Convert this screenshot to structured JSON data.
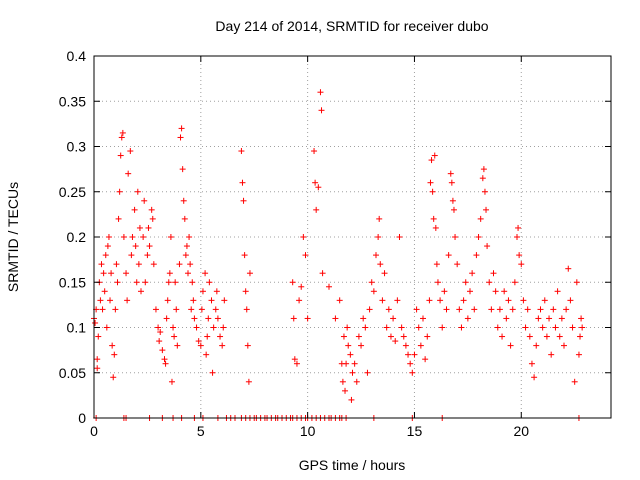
{
  "chart_data": {
    "type": "scatter",
    "title": "Day 214 of 2014, SRMTID for receiver dubo",
    "xlabel": "GPS time / hours",
    "ylabel": "SRMTID / TECUs",
    "xlim": [
      0,
      24.2
    ],
    "ylim": [
      0,
      0.4
    ],
    "x_ticks": [
      0,
      5,
      10,
      15,
      20
    ],
    "x_tick_labels": [
      "0",
      "5",
      "10",
      "15",
      "20"
    ],
    "y_ticks": [
      0,
      0.05,
      0.1,
      0.15,
      0.2,
      0.25,
      0.3,
      0.35,
      0.4
    ],
    "y_tick_labels": [
      "0",
      "0.05",
      "0.1",
      "0.15",
      "0.2",
      "0.25",
      "0.3",
      "0.35",
      "0.4"
    ],
    "grid": true,
    "marker": "+",
    "color": "#ff0000",
    "series": [
      {
        "name": "SRMTID",
        "points": [
          [
            0.0,
            0.11
          ],
          [
            0.05,
            0.105
          ],
          [
            0.1,
            0.12
          ],
          [
            0.15,
            0.055
          ],
          [
            0.15,
            0.065
          ],
          [
            0.2,
            0.09
          ],
          [
            0.25,
            0.15
          ],
          [
            0.3,
            0.13
          ],
          [
            0.35,
            0.17
          ],
          [
            0.4,
            0.12
          ],
          [
            0.45,
            0.16
          ],
          [
            0.5,
            0.14
          ],
          [
            0.55,
            0.18
          ],
          [
            0.6,
            0.1
          ],
          [
            0.65,
            0.19
          ],
          [
            0.7,
            0.2
          ],
          [
            0.75,
            0.13
          ],
          [
            0.8,
            0.16
          ],
          [
            0.85,
            0.08
          ],
          [
            0.9,
            0.045
          ],
          [
            0.95,
            0.07
          ],
          [
            1.0,
            0.12
          ],
          [
            1.05,
            0.17
          ],
          [
            1.1,
            0.15
          ],
          [
            1.15,
            0.22
          ],
          [
            1.2,
            0.25
          ],
          [
            1.25,
            0.29
          ],
          [
            1.3,
            0.31
          ],
          [
            1.35,
            0.315
          ],
          [
            1.4,
            0.2
          ],
          [
            1.5,
            0.16
          ],
          [
            1.55,
            0.13
          ],
          [
            1.6,
            0.27
          ],
          [
            1.7,
            0.295
          ],
          [
            1.75,
            0.18
          ],
          [
            1.8,
            0.2
          ],
          [
            1.9,
            0.23
          ],
          [
            1.95,
            0.19
          ],
          [
            2.0,
            0.15
          ],
          [
            2.05,
            0.25
          ],
          [
            2.1,
            0.17
          ],
          [
            2.15,
            0.21
          ],
          [
            2.2,
            0.14
          ],
          [
            2.3,
            0.2
          ],
          [
            2.35,
            0.24
          ],
          [
            2.4,
            0.15
          ],
          [
            2.5,
            0.18
          ],
          [
            2.55,
            0.21
          ],
          [
            2.6,
            0.19
          ],
          [
            2.7,
            0.23
          ],
          [
            2.75,
            0.22
          ],
          [
            2.8,
            0.17
          ],
          [
            2.9,
            0.12
          ],
          [
            3.0,
            0.1
          ],
          [
            3.05,
            0.085
          ],
          [
            3.1,
            0.095
          ],
          [
            3.2,
            0.075
          ],
          [
            3.3,
            0.065
          ],
          [
            3.35,
            0.06
          ],
          [
            3.4,
            0.11
          ],
          [
            3.45,
            0.13
          ],
          [
            3.5,
            0.15
          ],
          [
            3.55,
            0.16
          ],
          [
            3.6,
            0.2
          ],
          [
            3.65,
            0.04
          ],
          [
            3.7,
            0.1
          ],
          [
            3.75,
            0.09
          ],
          [
            3.8,
            0.15
          ],
          [
            3.85,
            0.12
          ],
          [
            3.9,
            0.08
          ],
          [
            4.0,
            0.17
          ],
          [
            4.05,
            0.31
          ],
          [
            4.1,
            0.32
          ],
          [
            4.15,
            0.275
          ],
          [
            4.2,
            0.24
          ],
          [
            4.25,
            0.22
          ],
          [
            4.3,
            0.18
          ],
          [
            4.35,
            0.19
          ],
          [
            4.4,
            0.16
          ],
          [
            4.45,
            0.2
          ],
          [
            4.5,
            0.17
          ],
          [
            4.55,
            0.12
          ],
          [
            4.6,
            0.15
          ],
          [
            4.65,
            0.13
          ],
          [
            4.7,
            0.11
          ],
          [
            4.8,
            0.1
          ],
          [
            4.9,
            0.085
          ],
          [
            5.0,
            0.08
          ],
          [
            5.05,
            0.12
          ],
          [
            5.1,
            0.14
          ],
          [
            5.2,
            0.16
          ],
          [
            5.25,
            0.07
          ],
          [
            5.3,
            0.09
          ],
          [
            5.35,
            0.11
          ],
          [
            5.4,
            0.15
          ],
          [
            5.5,
            0.13
          ],
          [
            5.55,
            0.05
          ],
          [
            5.6,
            0.1
          ],
          [
            5.7,
            0.12
          ],
          [
            5.75,
            0.14
          ],
          [
            5.8,
            0.11
          ],
          [
            5.9,
            0.09
          ],
          [
            6.0,
            0.08
          ],
          [
            6.05,
            0.1
          ],
          [
            6.1,
            0.13
          ],
          [
            6.9,
            0.295
          ],
          [
            6.95,
            0.26
          ],
          [
            7.0,
            0.24
          ],
          [
            7.05,
            0.18
          ],
          [
            7.1,
            0.14
          ],
          [
            7.15,
            0.12
          ],
          [
            7.2,
            0.08
          ],
          [
            7.25,
            0.04
          ],
          [
            7.3,
            0.16
          ],
          [
            9.3,
            0.15
          ],
          [
            9.35,
            0.11
          ],
          [
            9.4,
            0.065
          ],
          [
            9.5,
            0.06
          ],
          [
            9.6,
            0.13
          ],
          [
            9.7,
            0.145
          ],
          [
            9.8,
            0.2
          ],
          [
            9.9,
            0.18
          ],
          [
            10.0,
            0.11
          ],
          [
            10.3,
            0.295
          ],
          [
            10.35,
            0.26
          ],
          [
            10.4,
            0.23
          ],
          [
            10.5,
            0.255
          ],
          [
            10.6,
            0.36
          ],
          [
            10.65,
            0.34
          ],
          [
            10.7,
            0.16
          ],
          [
            11.0,
            0.145
          ],
          [
            11.3,
            0.11
          ],
          [
            11.5,
            0.13
          ],
          [
            11.6,
            0.06
          ],
          [
            11.65,
            0.04
          ],
          [
            11.7,
            0.09
          ],
          [
            11.75,
            0.03
          ],
          [
            11.8,
            0.06
          ],
          [
            11.85,
            0.1
          ],
          [
            11.9,
            0.08
          ],
          [
            12.0,
            0.07
          ],
          [
            12.05,
            0.02
          ],
          [
            12.1,
            0.05
          ],
          [
            12.2,
            0.06
          ],
          [
            12.3,
            0.04
          ],
          [
            12.4,
            0.09
          ],
          [
            12.5,
            0.08
          ],
          [
            12.6,
            0.11
          ],
          [
            12.7,
            0.1
          ],
          [
            12.8,
            0.05
          ],
          [
            12.9,
            0.12
          ],
          [
            13.0,
            0.15
          ],
          [
            13.1,
            0.14
          ],
          [
            13.2,
            0.18
          ],
          [
            13.3,
            0.2
          ],
          [
            13.35,
            0.22
          ],
          [
            13.4,
            0.17
          ],
          [
            13.5,
            0.13
          ],
          [
            13.6,
            0.16
          ],
          [
            13.7,
            0.1
          ],
          [
            13.8,
            0.12
          ],
          [
            13.9,
            0.09
          ],
          [
            14.0,
            0.11
          ],
          [
            14.1,
            0.085
          ],
          [
            14.2,
            0.13
          ],
          [
            14.3,
            0.2
          ],
          [
            14.4,
            0.1
          ],
          [
            14.5,
            0.09
          ],
          [
            14.6,
            0.08
          ],
          [
            14.7,
            0.07
          ],
          [
            14.8,
            0.06
          ],
          [
            14.9,
            0.05
          ],
          [
            15.0,
            0.07
          ],
          [
            15.1,
            0.12
          ],
          [
            15.2,
            0.1
          ],
          [
            15.3,
            0.08
          ],
          [
            15.4,
            0.11
          ],
          [
            15.5,
            0.065
          ],
          [
            15.6,
            0.09
          ],
          [
            15.7,
            0.13
          ],
          [
            15.75,
            0.26
          ],
          [
            15.8,
            0.285
          ],
          [
            15.85,
            0.25
          ],
          [
            15.9,
            0.22
          ],
          [
            15.95,
            0.29
          ],
          [
            16.0,
            0.21
          ],
          [
            16.05,
            0.17
          ],
          [
            16.1,
            0.15
          ],
          [
            16.2,
            0.13
          ],
          [
            16.3,
            0.1
          ],
          [
            16.4,
            0.14
          ],
          [
            16.5,
            0.12
          ],
          [
            16.6,
            0.18
          ],
          [
            16.7,
            0.27
          ],
          [
            16.75,
            0.26
          ],
          [
            16.8,
            0.24
          ],
          [
            16.85,
            0.23
          ],
          [
            16.9,
            0.2
          ],
          [
            17.0,
            0.17
          ],
          [
            17.1,
            0.12
          ],
          [
            17.2,
            0.1
          ],
          [
            17.3,
            0.13
          ],
          [
            17.4,
            0.15
          ],
          [
            17.5,
            0.11
          ],
          [
            17.6,
            0.14
          ],
          [
            17.7,
            0.16
          ],
          [
            17.8,
            0.12
          ],
          [
            17.9,
            0.18
          ],
          [
            18.0,
            0.2
          ],
          [
            18.1,
            0.22
          ],
          [
            18.2,
            0.265
          ],
          [
            18.25,
            0.275
          ],
          [
            18.3,
            0.25
          ],
          [
            18.35,
            0.23
          ],
          [
            18.4,
            0.19
          ],
          [
            18.5,
            0.15
          ],
          [
            18.6,
            0.12
          ],
          [
            18.7,
            0.16
          ],
          [
            18.8,
            0.14
          ],
          [
            18.9,
            0.1
          ],
          [
            19.0,
            0.12
          ],
          [
            19.1,
            0.09
          ],
          [
            19.2,
            0.14
          ],
          [
            19.3,
            0.11
          ],
          [
            19.4,
            0.13
          ],
          [
            19.5,
            0.08
          ],
          [
            19.6,
            0.12
          ],
          [
            19.7,
            0.15
          ],
          [
            19.8,
            0.2
          ],
          [
            19.85,
            0.21
          ],
          [
            19.9,
            0.18
          ],
          [
            20.0,
            0.17
          ],
          [
            20.1,
            0.13
          ],
          [
            20.2,
            0.1
          ],
          [
            20.3,
            0.12
          ],
          [
            20.4,
            0.09
          ],
          [
            20.5,
            0.06
          ],
          [
            20.6,
            0.045
          ],
          [
            20.7,
            0.08
          ],
          [
            20.8,
            0.11
          ],
          [
            20.9,
            0.12
          ],
          [
            21.0,
            0.1
          ],
          [
            21.1,
            0.13
          ],
          [
            21.2,
            0.09
          ],
          [
            21.3,
            0.11
          ],
          [
            21.4,
            0.07
          ],
          [
            21.5,
            0.12
          ],
          [
            21.6,
            0.1
          ],
          [
            21.7,
            0.14
          ],
          [
            21.8,
            0.09
          ],
          [
            21.9,
            0.11
          ],
          [
            22.0,
            0.08
          ],
          [
            22.1,
            0.12
          ],
          [
            22.2,
            0.165
          ],
          [
            22.3,
            0.13
          ],
          [
            22.4,
            0.1
          ],
          [
            22.5,
            0.04
          ],
          [
            22.6,
            0.15
          ],
          [
            22.7,
            0.07
          ],
          [
            22.75,
            0.09
          ],
          [
            22.8,
            0.11
          ],
          [
            22.85,
            0.1
          ]
        ]
      }
    ],
    "zero_points_x": [
      0.1,
      1.4,
      1.5,
      2.6,
      3.2,
      3.7,
      4.1,
      4.7,
      5.1,
      5.8,
      6.2,
      6.4,
      6.6,
      6.9,
      7.1,
      7.3,
      7.5,
      7.6,
      7.8,
      8.0,
      8.1,
      8.3,
      8.5,
      8.6,
      8.8,
      9.0,
      9.2,
      9.3,
      9.5,
      9.7,
      9.9,
      10.0,
      10.2,
      10.4,
      10.6,
      10.8,
      11.0,
      11.1,
      11.3,
      11.5,
      11.6,
      11.8,
      13.1,
      14.9,
      16.3,
      22.7
    ]
  }
}
